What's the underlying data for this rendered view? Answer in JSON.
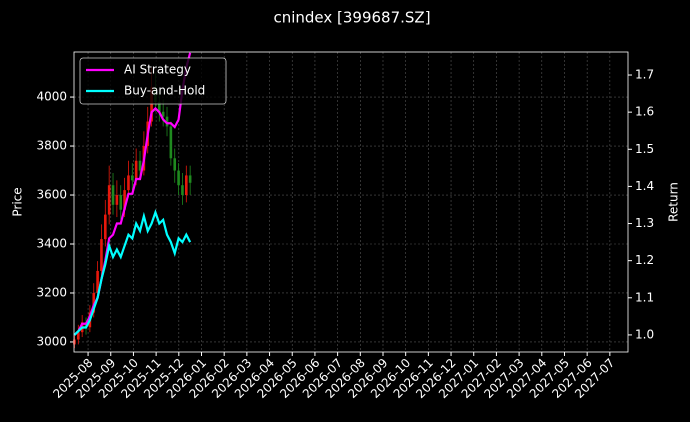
{
  "chart_data": {
    "type": "candlestick",
    "title": "cnindex [399687.SZ]",
    "y_label": "Price",
    "y2_label": "Return",
    "x": [
      -0.6,
      -0.43,
      -0.26,
      -0.09,
      0.08,
      0.25,
      0.42,
      0.59,
      0.76,
      0.93,
      1.1,
      1.27,
      1.44,
      1.61,
      1.78,
      1.95,
      2.12,
      2.29,
      2.46,
      2.63,
      2.8,
      2.97,
      3.14,
      3.31,
      3.48,
      3.65,
      3.82,
      3.99,
      4.16,
      4.33,
      4.5
    ],
    "open": [
      2990,
      3010,
      3040,
      3080,
      3060,
      3120,
      3200,
      3290,
      3420,
      3520,
      3640,
      3560,
      3600,
      3540,
      3620,
      3680,
      3660,
      3740,
      3700,
      3800,
      3900,
      4040,
      3980,
      3940,
      3920,
      3880,
      3750,
      3700,
      3640,
      3600,
      3680
    ],
    "high": [
      3030,
      3070,
      3110,
      3100,
      3150,
      3240,
      3330,
      3480,
      3580,
      3720,
      3690,
      3660,
      3640,
      3670,
      3740,
      3730,
      3790,
      3780,
      3860,
      3960,
      4120,
      4100,
      4020,
      3990,
      3960,
      3900,
      3790,
      3730,
      3690,
      3720,
      3720
    ],
    "low": [
      2975,
      2990,
      3020,
      3030,
      3040,
      3100,
      3180,
      3260,
      3390,
      3480,
      3520,
      3510,
      3500,
      3510,
      3590,
      3620,
      3640,
      3660,
      3680,
      3770,
      3880,
      3940,
      3900,
      3880,
      3840,
      3720,
      3650,
      3600,
      3560,
      3570,
      3600
    ],
    "close": [
      3010,
      3040,
      3080,
      3060,
      3120,
      3200,
      3290,
      3420,
      3520,
      3640,
      3560,
      3600,
      3540,
      3620,
      3680,
      3660,
      3740,
      3700,
      3800,
      3900,
      4040,
      3980,
      3940,
      3920,
      3880,
      3750,
      3700,
      3640,
      3600,
      3680,
      3650
    ],
    "up_color": "#e8180c",
    "down_color": "#1f8a1f",
    "series": [
      {
        "name": "AI Strategy",
        "color": "#ff00ff",
        "axis": "y2",
        "values": [
          1.0,
          1.01,
          1.03,
          1.03,
          1.05,
          1.08,
          1.1,
          1.15,
          1.2,
          1.26,
          1.27,
          1.3,
          1.3,
          1.34,
          1.38,
          1.38,
          1.42,
          1.42,
          1.47,
          1.54,
          1.6,
          1.61,
          1.6,
          1.58,
          1.57,
          1.57,
          1.56,
          1.58,
          1.66,
          1.72,
          1.76
        ]
      },
      {
        "name": "Buy-and-Hold",
        "color": "#00ffff",
        "axis": "y2",
        "values": [
          1.0,
          1.01,
          1.02,
          1.02,
          1.04,
          1.07,
          1.1,
          1.15,
          1.19,
          1.24,
          1.21,
          1.23,
          1.21,
          1.24,
          1.27,
          1.26,
          1.3,
          1.28,
          1.32,
          1.28,
          1.3,
          1.33,
          1.3,
          1.31,
          1.27,
          1.25,
          1.22,
          1.26,
          1.25,
          1.27,
          1.25
        ]
      }
    ],
    "xlim": [
      -0.62,
      23.8
    ],
    "xticks": [
      {
        "value": 0,
        "label": "2025-08"
      },
      {
        "value": 1,
        "label": "2025-09"
      },
      {
        "value": 2,
        "label": "2025-10"
      },
      {
        "value": 3,
        "label": "2025-11"
      },
      {
        "value": 4,
        "label": "2025-12"
      },
      {
        "value": 5,
        "label": "2026-01"
      },
      {
        "value": 6,
        "label": "2026-02"
      },
      {
        "value": 7,
        "label": "2026-03"
      },
      {
        "value": 8,
        "label": "2026-04"
      },
      {
        "value": 9,
        "label": "2026-05"
      },
      {
        "value": 10,
        "label": "2026-06"
      },
      {
        "value": 11,
        "label": "2026-07"
      },
      {
        "value": 12,
        "label": "2026-08"
      },
      {
        "value": 13,
        "label": "2026-09"
      },
      {
        "value": 14,
        "label": "2026-10"
      },
      {
        "value": 15,
        "label": "2026-11"
      },
      {
        "value": 16,
        "label": "2026-12"
      },
      {
        "value": 17,
        "label": "2027-01"
      },
      {
        "value": 18,
        "label": "2027-02"
      },
      {
        "value": 19,
        "label": "2027-03"
      },
      {
        "value": 20,
        "label": "2027-04"
      },
      {
        "value": 21,
        "label": "2027-05"
      },
      {
        "value": 22,
        "label": "2027-06"
      },
      {
        "value": 23,
        "label": "2027-07"
      }
    ],
    "ylim": [
      2959,
      4184
    ],
    "yticks": [
      3000,
      3200,
      3400,
      3600,
      3800,
      4000
    ],
    "y2lim": [
      0.954,
      1.762
    ],
    "y2ticks": [
      {
        "value": 1,
        "label": "1.0"
      },
      1.1,
      1.2,
      1.3,
      1.4,
      1.5,
      1.6,
      1.7
    ],
    "grid": true,
    "legend": "upper left"
  }
}
